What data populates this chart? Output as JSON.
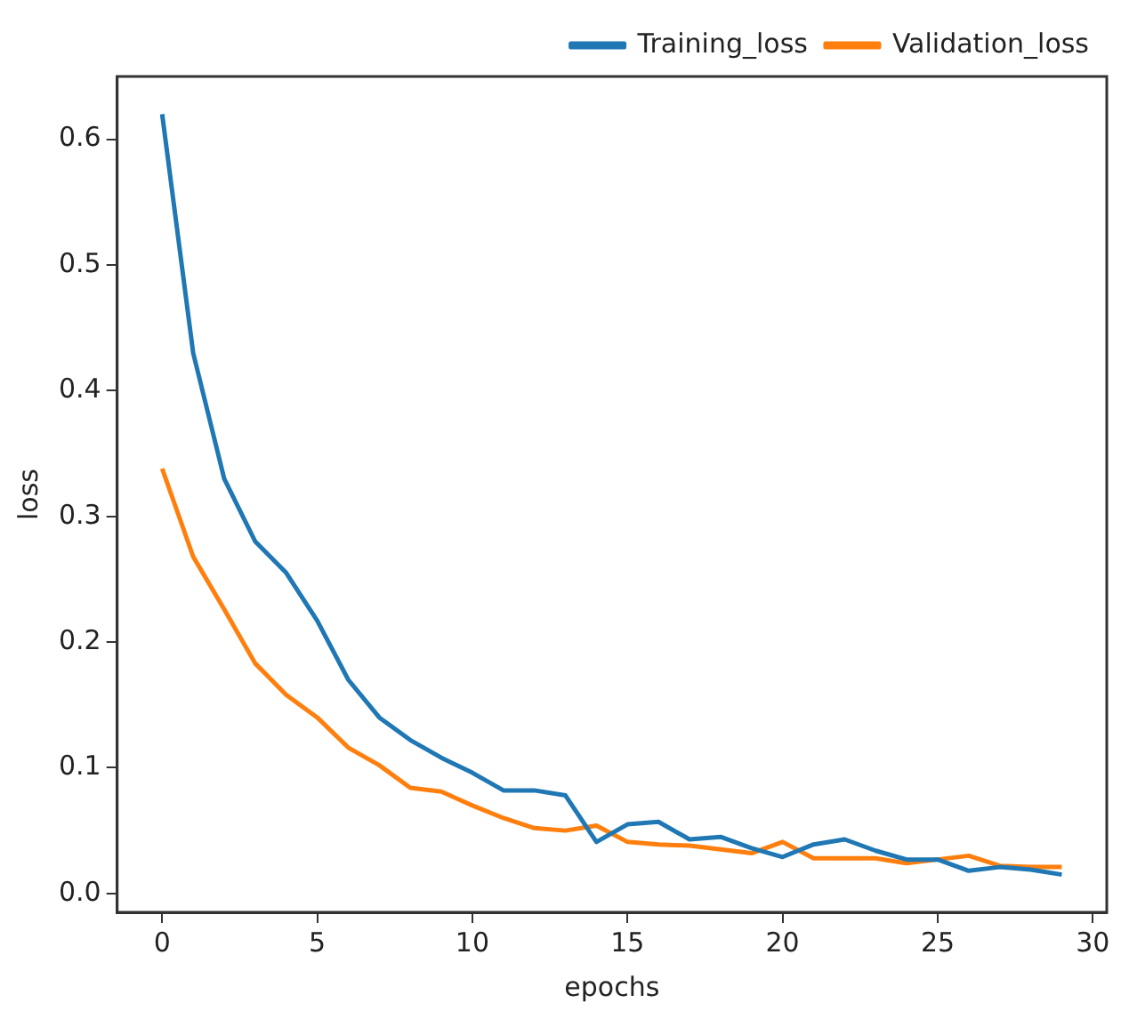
{
  "chart_data": {
    "type": "line",
    "xlabel": "epochs",
    "ylabel": "loss",
    "x": [
      0,
      1,
      2,
      3,
      4,
      5,
      6,
      7,
      8,
      9,
      10,
      11,
      12,
      13,
      14,
      15,
      16,
      17,
      18,
      19,
      20,
      21,
      22,
      23,
      24,
      25,
      26,
      27,
      28,
      29
    ],
    "series": [
      {
        "name": "Training_loss",
        "color": "#1f77b4",
        "values": [
          0.62,
          0.43,
          0.33,
          0.28,
          0.255,
          0.217,
          0.17,
          0.14,
          0.122,
          0.108,
          0.096,
          0.082,
          0.082,
          0.078,
          0.041,
          0.055,
          0.057,
          0.043,
          0.045,
          0.036,
          0.029,
          0.039,
          0.043,
          0.034,
          0.027,
          0.027,
          0.018,
          0.021,
          0.019,
          0.015
        ]
      },
      {
        "name": "Validation_loss",
        "color": "#ff7f0e",
        "values": [
          0.338,
          0.268,
          0.226,
          0.183,
          0.158,
          0.14,
          0.116,
          0.102,
          0.084,
          0.081,
          0.07,
          0.06,
          0.052,
          0.05,
          0.054,
          0.041,
          0.039,
          0.038,
          0.035,
          0.032,
          0.041,
          0.028,
          0.028,
          0.028,
          0.024,
          0.027,
          0.03,
          0.022,
          0.021,
          0.021
        ]
      }
    ],
    "xlim": [
      -1.45,
      30.45
    ],
    "xticks": [
      0,
      5,
      10,
      15,
      20,
      25,
      30
    ],
    "ylim": [
      -0.015,
      0.65
    ],
    "yticks": [
      {
        "value": 0,
        "label": "0.0"
      },
      0.1,
      0.2,
      0.3,
      0.4,
      0.5,
      0.6
    ],
    "legend": "top right",
    "grid": false,
    "marker": "none",
    "line_style": "solid"
  }
}
